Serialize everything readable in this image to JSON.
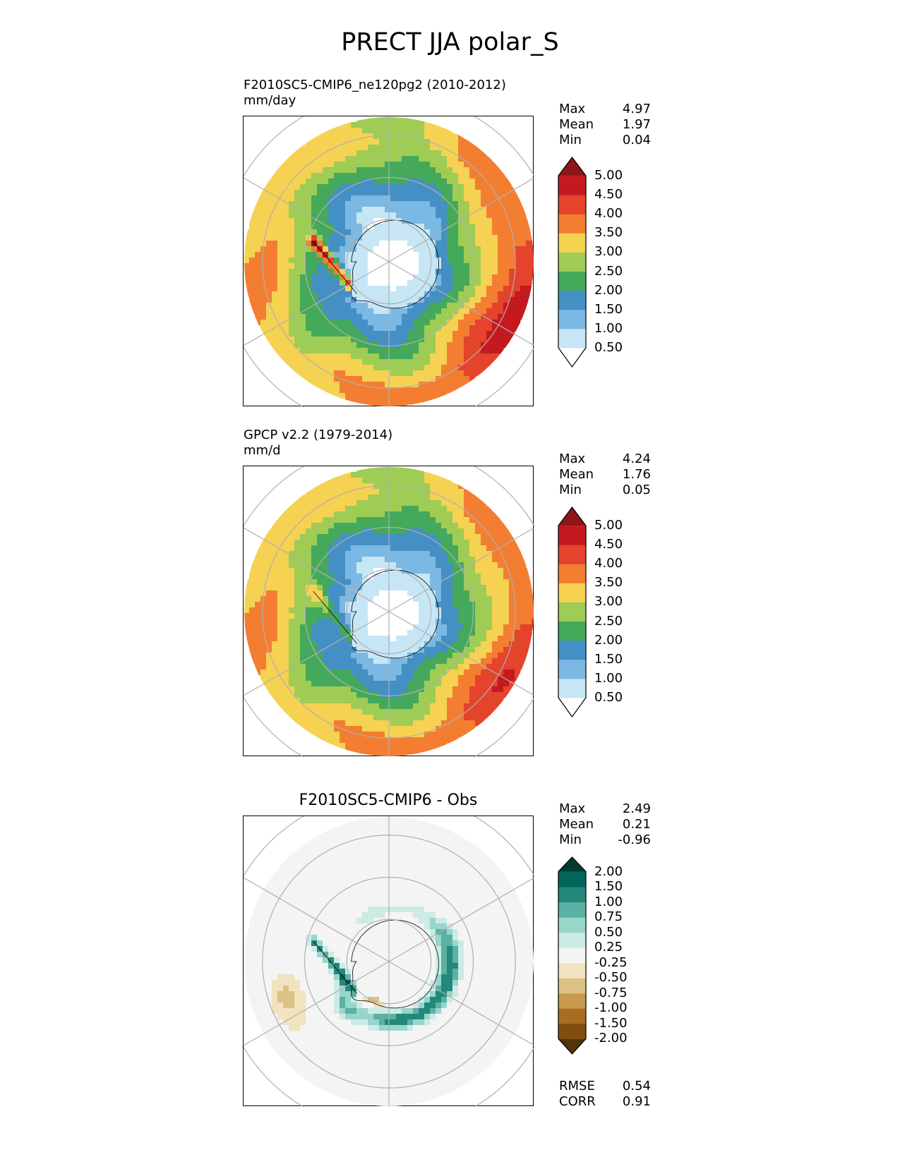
{
  "title": "PRECT JJA polar_S",
  "panels": [
    {
      "title_lines": [
        "F2010SC5-CMIP6_ne120pg2 (2010-2012)",
        "mm/day"
      ],
      "stats": [
        [
          "Max",
          "4.97"
        ],
        [
          "Mean",
          "1.97"
        ],
        [
          "Min",
          "0.04"
        ]
      ],
      "cmap": "prect"
    },
    {
      "title_lines": [
        "GPCP v2.2 (1979-2014)",
        "mm/d"
      ],
      "stats": [
        [
          "Max",
          "4.24"
        ],
        [
          "Mean",
          "1.76"
        ],
        [
          "Min",
          "0.05"
        ]
      ],
      "cmap": "prect"
    },
    {
      "title_center": "F2010SC5-CMIP6 - Obs",
      "stats": [
        [
          "Max",
          "2.49"
        ],
        [
          "Mean",
          "0.21"
        ],
        [
          "Min",
          "-0.96"
        ]
      ],
      "metrics": [
        [
          "RMSE",
          "0.54"
        ],
        [
          "CORR",
          "0.91"
        ]
      ],
      "cmap": "diff"
    }
  ],
  "colorbars": {
    "prect": {
      "ticks": [
        "0.50",
        "1.00",
        "1.50",
        "2.00",
        "2.50",
        "3.00",
        "3.50",
        "4.00",
        "4.50",
        "5.00"
      ],
      "colors": [
        "#ffffff",
        "#c6e6f5",
        "#7bb8e3",
        "#4490c5",
        "#44a95a",
        "#9ecc55",
        "#f5d252",
        "#f37e32",
        "#e4432c",
        "#c4191f",
        "#8e1519"
      ]
    },
    "diff": {
      "ticks": [
        "-2.00",
        "-1.50",
        "-1.00",
        "-0.75",
        "-0.50",
        "-0.25",
        "0.25",
        "0.50",
        "0.75",
        "1.00",
        "1.50",
        "2.00"
      ],
      "colors": [
        "#553309",
        "#7f4d0f",
        "#a96c23",
        "#c8994e",
        "#ddc285",
        "#f1e3c0",
        "#f4f4f4",
        "#cbebe4",
        "#98d6ca",
        "#5bb1a3",
        "#22897c",
        "#04665a",
        "#003c30"
      ]
    }
  }
}
